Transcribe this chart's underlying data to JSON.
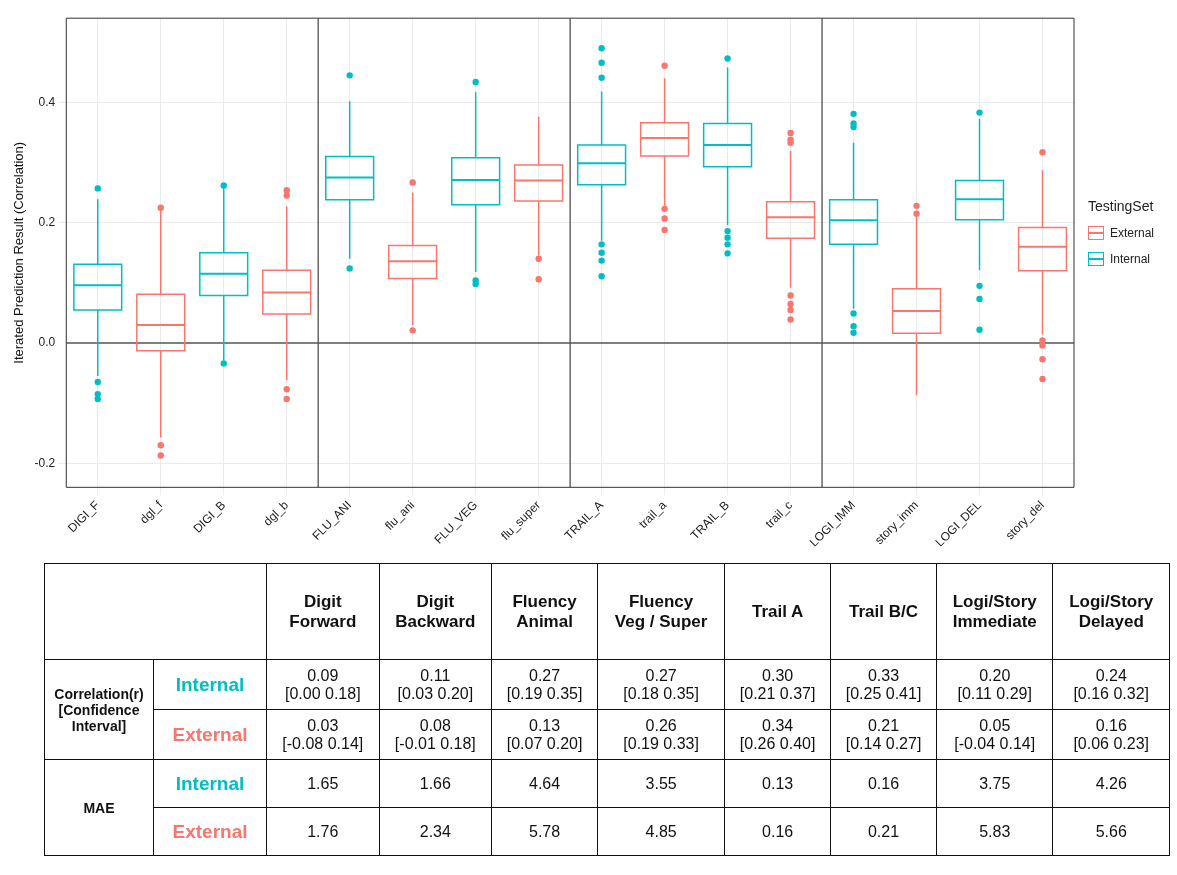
{
  "chart_data": [
    {
      "type": "box",
      "ylabel": "Iterated Prediction Result (Correlation)",
      "legend_title": "TestingSet",
      "legend": "right",
      "grid": true,
      "ylim": [
        -0.24,
        0.54
      ],
      "yticks": [
        {
          "value": -0.2,
          "label": "-0.2"
        },
        {
          "value": 0,
          "label": "0.0"
        },
        {
          "value": 0.2,
          "label": "0.2"
        },
        {
          "value": 0.4,
          "label": "0.4"
        }
      ],
      "categories": [
        "DIGI_F",
        "dgl_f",
        "DIGI_B",
        "dgl_b",
        "FLU_ANI",
        "flu_ani",
        "FLU_VEG",
        "flu_super",
        "TRAIL_A",
        "trail_a",
        "TRAIL_B",
        "trail_c",
        "LOGI_IMM",
        "story_imm",
        "LOGI_DEL",
        "story_del"
      ],
      "ref_lines": [
        {
          "axis": "y",
          "value": 0,
          "color": "#555555"
        }
      ],
      "series": [
        {
          "name": "External",
          "color": "#f8766d",
          "boxes": [
            null,
            {
              "low": -0.157,
              "q1": -0.013,
              "median": 0.03,
              "q3": 0.081,
              "high": 0.221,
              "outliers": [
                0.225,
                -0.17,
                -0.187
              ]
            },
            null,
            {
              "low": -0.062,
              "q1": 0.048,
              "median": 0.084,
              "q3": 0.121,
              "high": 0.227,
              "outliers": [
                0.254,
                0.245,
                -0.077,
                -0.093
              ]
            },
            null,
            {
              "low": 0.03,
              "q1": 0.107,
              "median": 0.136,
              "q3": 0.162,
              "high": 0.25,
              "outliers": [
                0.267,
                0.021
              ]
            },
            null,
            {
              "low": 0.146,
              "q1": 0.236,
              "median": 0.27,
              "q3": 0.296,
              "high": 0.376,
              "outliers": [
                0.14,
                0.106
              ]
            },
            null,
            {
              "low": 0.228,
              "q1": 0.311,
              "median": 0.341,
              "q3": 0.366,
              "high": 0.44,
              "outliers": [
                0.461,
                0.223,
                0.207,
                0.188
              ]
            },
            null,
            {
              "low": 0.092,
              "q1": 0.174,
              "median": 0.209,
              "q3": 0.235,
              "high": 0.319,
              "outliers": [
                0.349,
                0.338,
                0.333,
                0.079,
                0.065,
                0.055,
                0.039
              ]
            },
            null,
            {
              "low": -0.087,
              "q1": 0.016,
              "median": 0.053,
              "q3": 0.09,
              "high": 0.212,
              "outliers": [
                0.228,
                0.215
              ]
            },
            null,
            {
              "low": 0.014,
              "q1": 0.12,
              "median": 0.16,
              "q3": 0.192,
              "high": 0.287,
              "outliers": [
                0.317,
                0.004,
                -0.004,
                -0.027,
                -0.06
              ]
            }
          ]
        },
        {
          "name": "Internal",
          "color": "#00bfc4",
          "boxes": [
            {
              "low": -0.055,
              "q1": 0.055,
              "median": 0.096,
              "q3": 0.131,
              "high": 0.239,
              "outliers": [
                0.257,
                -0.065,
                -0.085,
                -0.093
              ]
            },
            null,
            {
              "low": -0.029,
              "q1": 0.079,
              "median": 0.115,
              "q3": 0.15,
              "high": 0.258,
              "outliers": [
                0.262,
                -0.034
              ]
            },
            null,
            {
              "low": 0.14,
              "q1": 0.238,
              "median": 0.275,
              "q3": 0.31,
              "high": 0.402,
              "outliers": [
                0.445,
                0.124
              ]
            },
            null,
            {
              "low": 0.118,
              "q1": 0.23,
              "median": 0.271,
              "q3": 0.308,
              "high": 0.417,
              "outliers": [
                0.434,
                0.104,
                0.098
              ]
            },
            null,
            {
              "low": 0.17,
              "q1": 0.263,
              "median": 0.299,
              "q3": 0.329,
              "high": 0.418,
              "outliers": [
                0.441,
                0.466,
                0.49,
                0.164,
                0.15,
                0.137,
                0.111
              ]
            },
            null,
            {
              "low": 0.196,
              "q1": 0.293,
              "median": 0.329,
              "q3": 0.365,
              "high": 0.458,
              "outliers": [
                0.473,
                0.186,
                0.175,
                0.164,
                0.149
              ]
            },
            null,
            {
              "low": 0.057,
              "q1": 0.164,
              "median": 0.204,
              "q3": 0.238,
              "high": 0.333,
              "outliers": [
                0.381,
                0.365,
                0.359,
                0.049,
                0.028,
                0.017
              ]
            },
            null,
            {
              "low": 0.121,
              "q1": 0.205,
              "median": 0.239,
              "q3": 0.27,
              "high": 0.373,
              "outliers": [
                0.383,
                0.095,
                0.073,
                0.022
              ]
            },
            null
          ]
        }
      ]
    },
    {
      "type": "other",
      "categories": [
        "Digit\nForward",
        "Digit\nBackward",
        "Fluency\nAnimal",
        "Fluency\nVeg / Super",
        "Trail A",
        "Trail B/C",
        "Logi/Story\nImmediate",
        "Logi/Story\nDelayed"
      ],
      "y_categories": [
        "Internal",
        "External",
        "Internal",
        "External"
      ],
      "colors": [
        "#00bfc4",
        "#f8766d",
        "#00bfc4",
        "#f8766d"
      ],
      "annotations": [
        "Correlation(r)\n[Confidence\nInterval]",
        "MAE"
      ],
      "cell_labels": [
        [
          "0.09\n[0.00 0.18]",
          "0.11\n[0.03 0.20]",
          "0.27\n[0.19 0.35]",
          "0.27\n[0.18 0.35]",
          "0.30\n[0.21 0.37]",
          "0.33\n[0.25 0.41]",
          "0.20\n[0.11 0.29]",
          "0.24\n[0.16 0.32]"
        ],
        [
          "0.03\n[-0.08 0.14]",
          "0.08\n[-0.01 0.18]",
          "0.13\n[0.07 0.20]",
          "0.26\n[0.19 0.33]",
          "0.34\n[0.26 0.40]",
          "0.21\n[0.14 0.27]",
          "0.05\n[-0.04 0.14]",
          "0.16\n[0.06 0.23]"
        ],
        [
          "1.65",
          "1.66",
          "4.64",
          "3.55",
          "0.13",
          "0.16",
          "3.75",
          "4.26"
        ],
        [
          "1.76",
          "2.34",
          "5.78",
          "4.85",
          "0.16",
          "0.21",
          "5.83",
          "5.66"
        ]
      ]
    }
  ]
}
